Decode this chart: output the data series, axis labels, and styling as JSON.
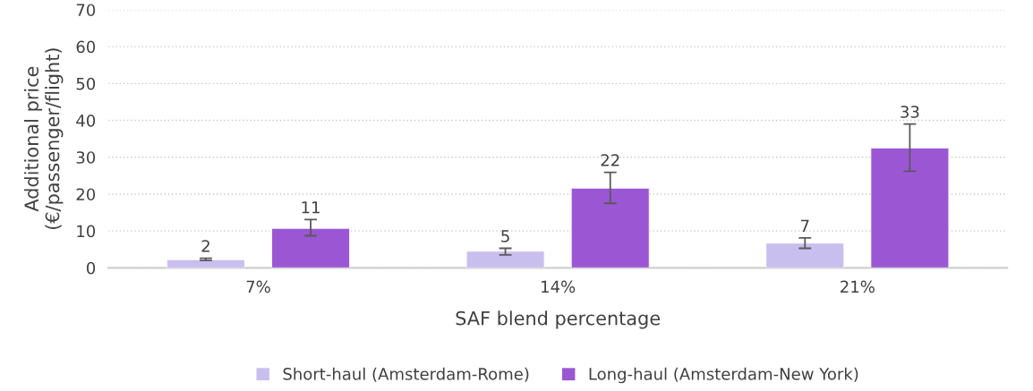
{
  "chart_data": {
    "type": "bar",
    "xlabel": "SAF blend percentage",
    "ylabel": "Additional price\n(€/passenger/flight)",
    "categories": [
      "7%",
      "14%",
      "21%"
    ],
    "series": [
      {
        "name": "Short-haul (Amsterdam-Rome)",
        "color": "#c9bfee",
        "values": [
          2.2,
          4.5,
          6.7
        ],
        "errors": [
          [
            2.0,
            2.6
          ],
          [
            3.5,
            5.3
          ],
          [
            5.3,
            8.1
          ]
        ],
        "value_labels": [
          "2",
          "5",
          "7"
        ]
      },
      {
        "name": "Long-haul (Amsterdam-New York)",
        "color": "#9b57d3",
        "values": [
          10.7,
          21.6,
          32.5
        ],
        "errors": [
          [
            8.7,
            13.1
          ],
          [
            17.5,
            25.9
          ],
          [
            26.2,
            39.0
          ]
        ],
        "value_labels": [
          "11",
          "22",
          "33"
        ]
      }
    ],
    "ylim": [
      0,
      70
    ],
    "yticks": [
      0,
      10,
      20,
      30,
      40,
      50,
      60,
      70
    ],
    "grid": "y",
    "legend": "bottom"
  }
}
